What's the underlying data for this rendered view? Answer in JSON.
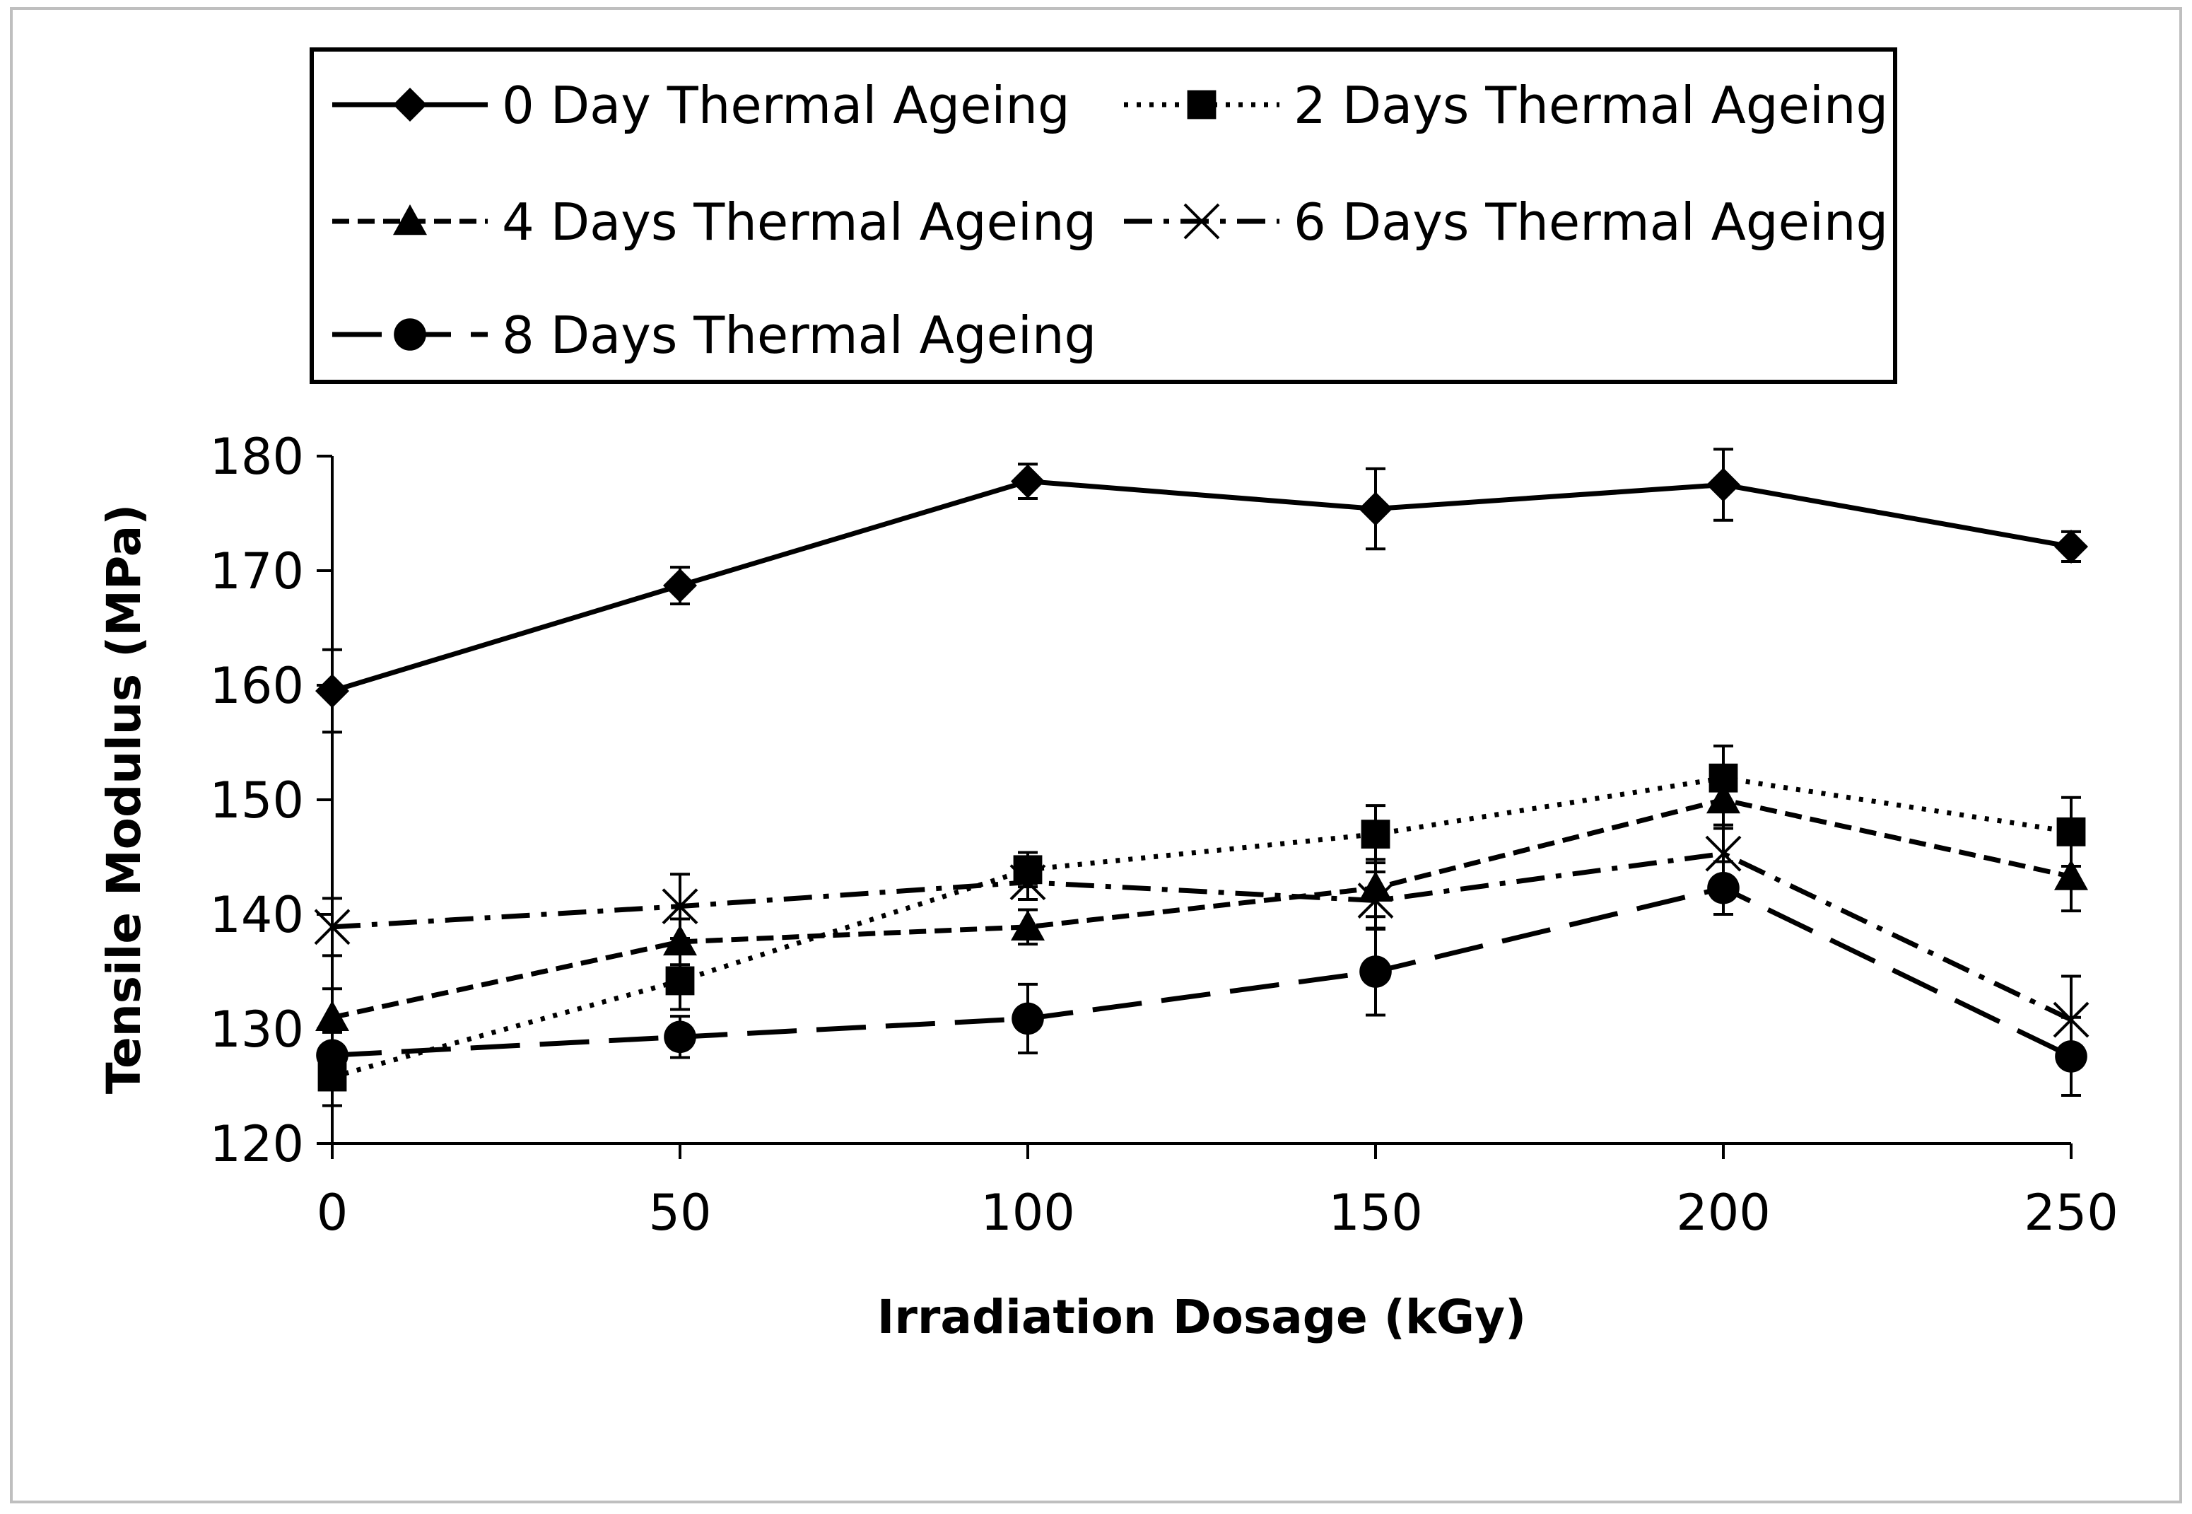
{
  "chart_data": {
    "type": "line",
    "title": "",
    "xlabel": "Irradiation Dosage (kGy)",
    "ylabel": "Tensile Modulus (MPa)",
    "x": [
      0,
      50,
      100,
      150,
      200,
      250
    ],
    "x_ticks": [
      "0",
      "50",
      "100",
      "150",
      "200",
      "250"
    ],
    "y_ticks": [
      "120",
      "130",
      "140",
      "150",
      "160",
      "170",
      "180"
    ],
    "xlim": [
      0,
      250
    ],
    "ylim": [
      120,
      180
    ],
    "grid": false,
    "legend_position": "top",
    "series": [
      {
        "name": "0 Day Thermal Ageing",
        "line_style": "solid",
        "marker": "diamond",
        "values": [
          159.5,
          168.7,
          177.8,
          175.4,
          177.5,
          172.1
        ],
        "errors": [
          3.6,
          1.6,
          1.5,
          3.5,
          3.1,
          1.3
        ]
      },
      {
        "name": "2 Days Thermal Ageing",
        "line_style": "dotted",
        "marker": "square",
        "values": [
          125.8,
          134.2,
          143.9,
          147.0,
          151.9,
          147.2
        ],
        "errors": [
          2.5,
          2.5,
          1.5,
          2.5,
          2.8,
          3.0
        ]
      },
      {
        "name": "4 Days Thermal Ageing",
        "line_style": "dashed",
        "marker": "triangle",
        "values": [
          131.0,
          137.6,
          138.9,
          142.3,
          150.0,
          143.3
        ],
        "errors": [
          2.5,
          2.0,
          1.5,
          2.5,
          2.5,
          3.0
        ]
      },
      {
        "name": "6 Days Thermal Ageing",
        "line_style": "dash-dot",
        "marker": "x",
        "values": [
          138.9,
          140.7,
          142.8,
          141.2,
          145.3,
          130.8
        ],
        "errors": [
          2.5,
          2.8,
          1.5,
          2.5,
          2.5,
          3.8
        ]
      },
      {
        "name": "8 Days Thermal Ageing",
        "line_style": "long-dash",
        "marker": "circle",
        "values": [
          127.7,
          129.3,
          130.9,
          135.0,
          142.3,
          127.6
        ],
        "errors": [
          2.0,
          1.8,
          3.0,
          3.8,
          2.3,
          3.4
        ]
      }
    ]
  }
}
